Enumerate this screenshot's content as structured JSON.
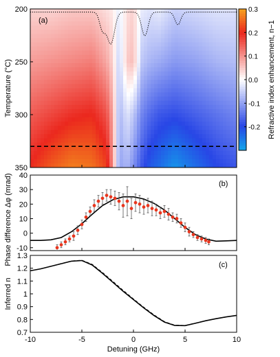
{
  "chart_data": [
    {
      "panel": "(a)",
      "type": "heatmap",
      "ylabel": "Temperature (°C)",
      "ylim": [
        200,
        350
      ],
      "y_ticks": [
        "200",
        "250",
        "300",
        "350"
      ],
      "xlim": [
        -10,
        10
      ],
      "colorbar": {
        "label": "Refractive index enhancement, n−1",
        "range": [
          -0.3,
          0.3
        ],
        "ticks": [
          "0.3",
          "0.2",
          "0.1",
          "0.0",
          "-0.1",
          "-0.2"
        ],
        "low_color": "#12a6ea",
        "mid_color": "#ffffff",
        "high_color": "#f5a21e"
      },
      "dashed_line_temperature": 330,
      "dotted_transmission_dips_ghz": [
        -3.0,
        -2.2,
        1.1,
        4.3
      ],
      "field_samples": {
        "description": "n-1 sampled at detuning columns for temperatures",
        "detuning": [
          -10,
          -8,
          -6,
          -4,
          -2.6,
          -2.0,
          -1.4,
          -0.6,
          0,
          0.8,
          1.6,
          2.5,
          4,
          6,
          8,
          10
        ],
        "temperatures": [
          200,
          250,
          300,
          350
        ],
        "values": [
          [
            0.04,
            0.04,
            0.05,
            0.05,
            0.03,
            0.02,
            -0.02,
            0.03,
            0.04,
            -0.02,
            -0.03,
            -0.02,
            -0.05,
            -0.04,
            -0.03,
            -0.03
          ],
          [
            0.09,
            0.1,
            0.11,
            0.12,
            0.08,
            0.04,
            -0.05,
            0.05,
            0.06,
            -0.06,
            -0.08,
            -0.09,
            -0.11,
            -0.1,
            -0.08,
            -0.07
          ],
          [
            0.15,
            0.17,
            0.19,
            0.2,
            0.16,
            0.08,
            -0.08,
            -0.03,
            -0.06,
            -0.13,
            -0.16,
            -0.18,
            -0.19,
            -0.17,
            -0.15,
            -0.13
          ],
          [
            0.2,
            0.24,
            0.27,
            0.26,
            0.22,
            0.1,
            -0.1,
            -0.08,
            -0.12,
            -0.18,
            -0.22,
            -0.24,
            -0.28,
            -0.24,
            -0.2,
            -0.18
          ]
        ]
      }
    },
    {
      "panel": "(b)",
      "type": "scatter",
      "ylabel": "Phase difference Δφ (mrad)",
      "ylim": [
        -12,
        40
      ],
      "y_ticks": [
        "40",
        "30",
        "20",
        "10",
        "0",
        "-10"
      ],
      "xlim": [
        -10,
        10
      ],
      "series": [
        {
          "kind": "measured",
          "color": "#e8361e",
          "x": [
            -7.4,
            -7.0,
            -6.6,
            -6.2,
            -5.8,
            -5.4,
            -5.0,
            -4.6,
            -4.2,
            -3.8,
            -3.4,
            -3.0,
            -2.6,
            -2.2,
            -1.8,
            -1.4,
            -1.0,
            -0.6,
            -0.2,
            0.2,
            0.6,
            1.0,
            1.4,
            1.8,
            2.2,
            2.6,
            3.0,
            3.4,
            3.8,
            4.2,
            4.6,
            5.0,
            5.4,
            5.8,
            6.2,
            6.6,
            7.0,
            7.3
          ],
          "y": [
            -10,
            -8,
            -6,
            -4,
            -2,
            2,
            6,
            11,
            15,
            19,
            22,
            24,
            26,
            25,
            24,
            22,
            19,
            22,
            17,
            21,
            20,
            18,
            19,
            17,
            16,
            14,
            15,
            13,
            11,
            10,
            7,
            4,
            1,
            -1,
            -3,
            -4,
            -5,
            -6
          ],
          "error": [
            2,
            2,
            2,
            2,
            3,
            3,
            3,
            3,
            3,
            4,
            4,
            4,
            4,
            5,
            5,
            6,
            8,
            10,
            7,
            6,
            6,
            5,
            5,
            5,
            4,
            4,
            4,
            4,
            3,
            3,
            3,
            3,
            3,
            2,
            2,
            2,
            2,
            2
          ]
        },
        {
          "kind": "model",
          "color": "#000000",
          "x": [
            -10,
            -9,
            -8,
            -7,
            -6,
            -5,
            -4,
            -3,
            -2,
            -1,
            0,
            1,
            2,
            3,
            4,
            5,
            6,
            7,
            8,
            9,
            10
          ],
          "y": [
            -5,
            -5,
            -4.6,
            -3,
            1,
            6.5,
            13,
            19,
            23,
            25,
            25,
            23.5,
            20.5,
            16,
            10,
            4,
            -1,
            -4,
            -5.5,
            -5.3,
            -5
          ]
        }
      ]
    },
    {
      "panel": "(c)",
      "type": "line",
      "xlabel": "Detuning (GHz)",
      "ylabel": "Inferred n",
      "xlim": [
        -10,
        10
      ],
      "ylim": [
        0.7,
        1.3
      ],
      "x_ticks": [
        "-10",
        "-5",
        "0",
        "5",
        "10"
      ],
      "y_ticks": [
        "1.3",
        "1.2",
        "1.1",
        "1",
        "0.9",
        "0.8",
        "0.7"
      ],
      "series": [
        {
          "style": "solid",
          "x": [
            -10,
            -9,
            -8,
            -7,
            -6,
            -5,
            -4,
            -3,
            -2,
            -1,
            0,
            1,
            2,
            3,
            4,
            5,
            6,
            7,
            8,
            9,
            10
          ],
          "y": [
            1.18,
            1.195,
            1.215,
            1.235,
            1.255,
            1.26,
            1.225,
            1.16,
            1.09,
            1.02,
            0.955,
            0.89,
            0.83,
            0.78,
            0.753,
            0.752,
            0.77,
            0.79,
            0.806,
            0.82,
            0.832
          ]
        },
        {
          "style": "dashed",
          "x": [
            -10,
            -9,
            -8,
            -7,
            -6,
            -5,
            -4,
            -3,
            -2,
            -1,
            0,
            1,
            2,
            3,
            4,
            5,
            6,
            7,
            8,
            9,
            10
          ],
          "y": [
            1.18,
            1.195,
            1.215,
            1.236,
            1.256,
            1.262,
            1.23,
            1.166,
            1.097,
            1.027,
            0.96,
            0.895,
            0.835,
            0.783,
            0.755,
            0.753,
            0.771,
            0.79,
            0.806,
            0.82,
            0.832
          ]
        }
      ]
    }
  ]
}
